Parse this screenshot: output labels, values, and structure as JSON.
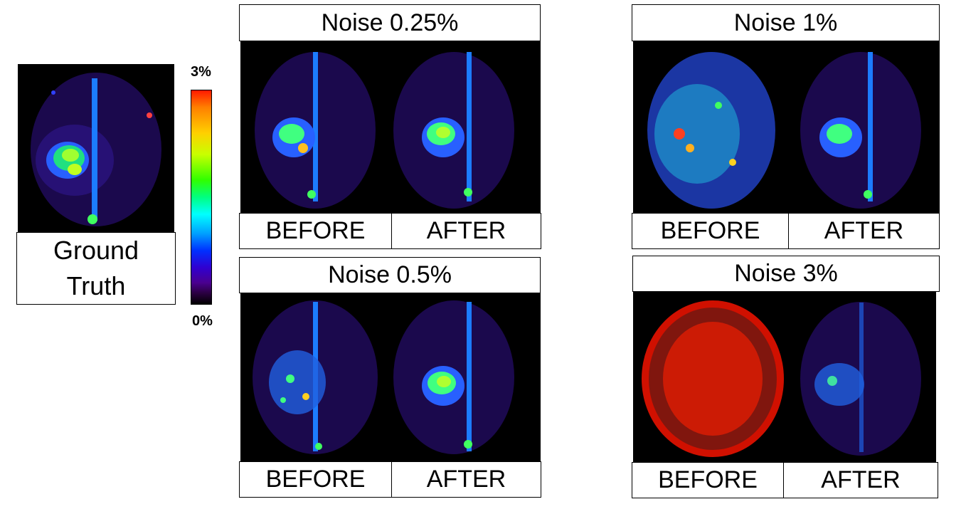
{
  "ground_truth": {
    "line1": "Ground",
    "line2": "Truth"
  },
  "colorbar": {
    "max_label": "3%",
    "min_label": "0%"
  },
  "panels": [
    {
      "title": "Noise 0.25%",
      "before_label": "BEFORE",
      "after_label": "AFTER"
    },
    {
      "title": "Noise 0.5%",
      "before_label": "BEFORE",
      "after_label": "AFTER"
    },
    {
      "title": "Noise 1%",
      "before_label": "BEFORE",
      "after_label": "AFTER"
    },
    {
      "title": "Noise 3%",
      "before_label": "BEFORE",
      "after_label": "AFTER"
    }
  ]
}
